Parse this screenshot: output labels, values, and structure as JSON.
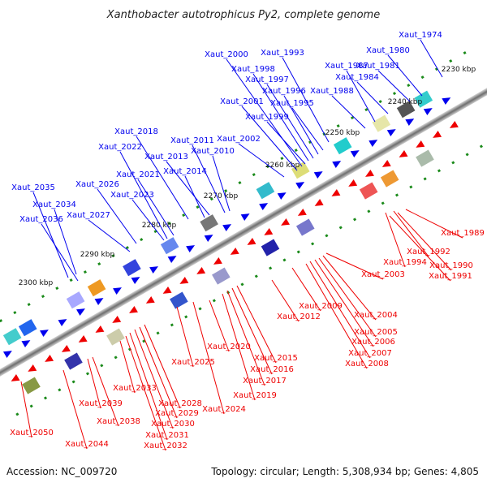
{
  "title": "Xanthobacter autotrophicus Py2, complete genome",
  "footer": {
    "accession": "Accession: NC_009720",
    "summary": "Topology: circular; Length: 5,308,934 bp; Genes: 4,805"
  },
  "colors": {
    "forward_strand": "#0000ee",
    "reverse_strand": "#ee0000",
    "backbone": "#8a8a8a",
    "tick_dot": "#1a8a1a"
  },
  "kbp_ticks": [
    "2230 kbp",
    "2240 kbp",
    "2250 kbp",
    "2260 kbp",
    "2270 kbp",
    "2280 kbp",
    "2290 kbp",
    "2300 kbp"
  ],
  "forward_genes": [
    "Xaut_1974",
    "Xaut_1980",
    "Xaut_1981",
    "Xaut_1984",
    "Xaut_1987",
    "Xaut_1988",
    "Xaut_1993",
    "Xaut_1995",
    "Xaut_1996",
    "Xaut_1997",
    "Xaut_1998",
    "Xaut_1999",
    "Xaut_2000",
    "Xaut_2001",
    "Xaut_2002",
    "Xaut_2010",
    "Xaut_2011",
    "Xaut_2013",
    "Xaut_2014",
    "Xaut_2018",
    "Xaut_2021",
    "Xaut_2022",
    "Xaut_2023",
    "Xaut_2026",
    "Xaut_2027",
    "Xaut_2034",
    "Xaut_2035",
    "Xaut_2036"
  ],
  "reverse_genes": [
    "Xaut_1989",
    "Xaut_1992",
    "Xaut_1994",
    "Xaut_1990",
    "Xaut_1991",
    "Xaut_2003",
    "Xaut_2004",
    "Xaut_2005",
    "Xaut_2006",
    "Xaut_2007",
    "Xaut_2008",
    "Xaut_2009",
    "Xaut_2012",
    "Xaut_2015",
    "Xaut_2016",
    "Xaut_2017",
    "Xaut_2019",
    "Xaut_2020",
    "Xaut_2024",
    "Xaut_2025",
    "Xaut_2028",
    "Xaut_2029",
    "Xaut_2030",
    "Xaut_2031",
    "Xaut_2032",
    "Xaut_2033",
    "Xaut_2038",
    "Xaut_2039",
    "Xaut_2044",
    "Xaut_2050"
  ]
}
